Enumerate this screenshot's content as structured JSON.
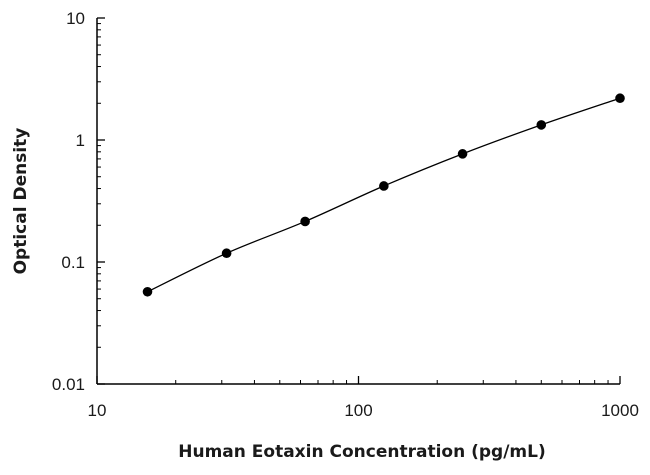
{
  "chart_data": {
    "type": "scatter",
    "title": "",
    "xlabel": "Human Eotaxin Concentration (pg/mL)",
    "ylabel": "Optical Density",
    "x_scale": "log",
    "y_scale": "log",
    "xlim": [
      10,
      1000
    ],
    "ylim": [
      0.01,
      10
    ],
    "x_ticks": [
      "10",
      "100",
      "1000"
    ],
    "y_ticks": [
      "0.01",
      "0.1",
      "1",
      "10"
    ],
    "grid": false,
    "legend": "none",
    "marker_color": "#000000",
    "series": [
      {
        "x": [
          15.6,
          31.3,
          62.5,
          125,
          250,
          500,
          1000
        ],
        "y": [
          0.057,
          0.118,
          0.215,
          0.42,
          0.77,
          1.33,
          2.2
        ],
        "fit_curve": true
      }
    ]
  }
}
